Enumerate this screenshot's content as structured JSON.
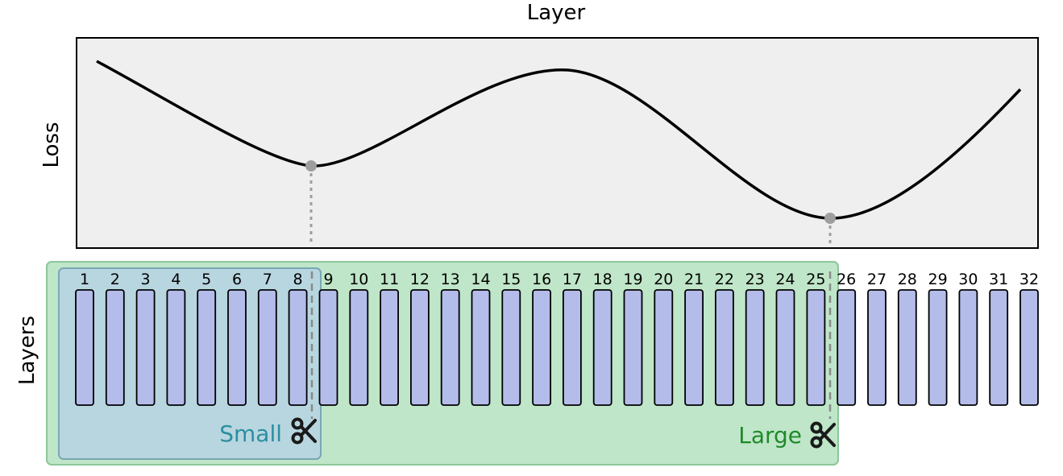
{
  "loss_panel": {
    "title": "Layer",
    "ylabel": "Loss"
  },
  "layers_panel": {
    "ylabel": "Layers",
    "layer_count": 32,
    "layer_labels": [
      "1",
      "2",
      "3",
      "4",
      "5",
      "6",
      "7",
      "8",
      "9",
      "10",
      "11",
      "12",
      "13",
      "14",
      "15",
      "16",
      "17",
      "18",
      "19",
      "20",
      "21",
      "22",
      "23",
      "24",
      "25",
      "26",
      "27",
      "28",
      "29",
      "30",
      "31",
      "32"
    ],
    "small_label": "Small",
    "large_label": "Large",
    "small_cut_after_layer": 8,
    "large_cut_after_layer": 25
  },
  "icons": {
    "cut": "scissors-icon"
  },
  "colors": {
    "panel_bg": "#efefef",
    "curve": "#000000",
    "marker": "#9e9e9e",
    "layer_fill": "#b4bcea",
    "small_region": "#b8d6e0",
    "small_border": "#7aa7b5",
    "large_region": "#bfe6c8",
    "large_border": "#8cc79a",
    "small_text": "#2a8fa0",
    "large_text": "#1f8a2a"
  }
}
